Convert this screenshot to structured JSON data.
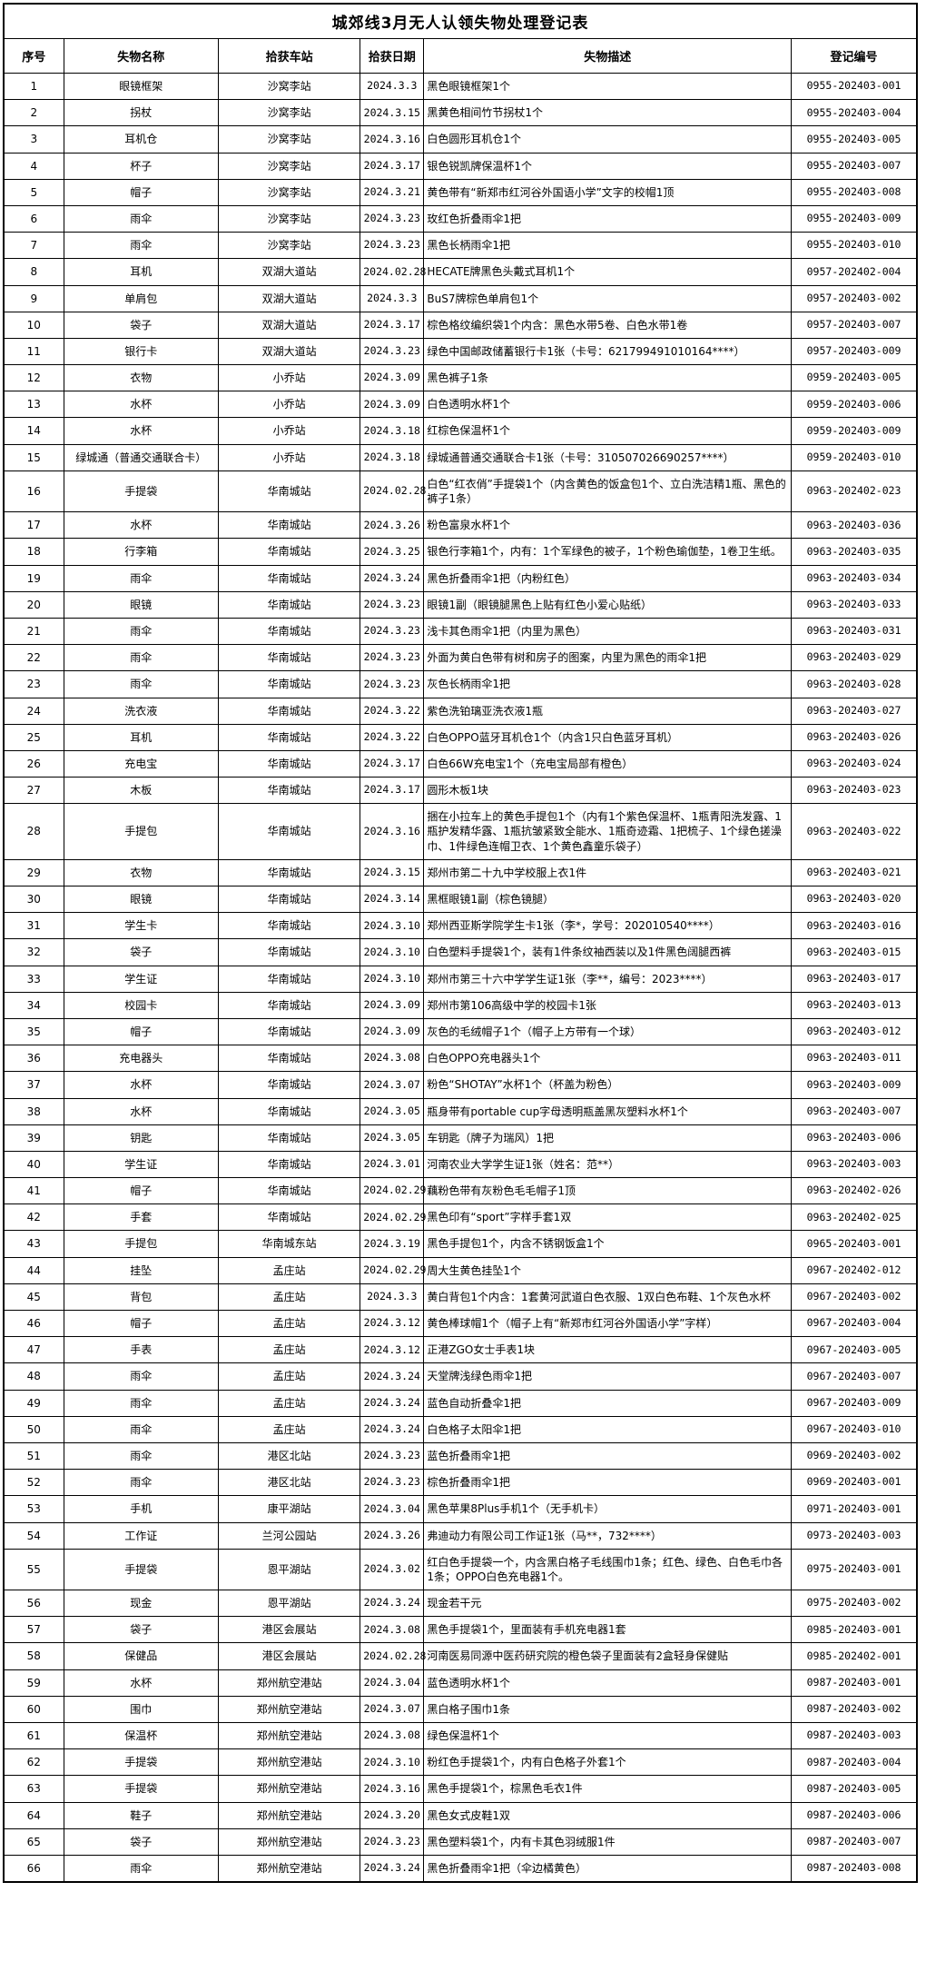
{
  "title": "城郊线3月无人认领失物处理登记表",
  "table": {
    "headers": [
      "序号",
      "失物名称",
      "拾获车站",
      "拾获日期",
      "失物描述",
      "登记编号"
    ],
    "column_keys": [
      "index",
      "item-name",
      "station",
      "date",
      "description",
      "registration-no"
    ],
    "rows": [
      [
        "1",
        "眼镜框架",
        "沙窝李站",
        "2024.3.3",
        "黑色眼镜框架1个",
        "0955-202403-001"
      ],
      [
        "2",
        "拐杖",
        "沙窝李站",
        "2024.3.15",
        "黑黄色相间竹节拐杖1个",
        "0955-202403-004"
      ],
      [
        "3",
        "耳机仓",
        "沙窝李站",
        "2024.3.16",
        "白色圆形耳机仓1个",
        "0955-202403-005"
      ],
      [
        "4",
        "杯子",
        "沙窝李站",
        "2024.3.17",
        "银色锐凯牌保温杯1个",
        "0955-202403-007"
      ],
      [
        "5",
        "帽子",
        "沙窝李站",
        "2024.3.21",
        "黄色带有“新郑市红河谷外国语小学”文字的校帽1顶",
        "0955-202403-008"
      ],
      [
        "6",
        "雨伞",
        "沙窝李站",
        "2024.3.23",
        "玫红色折叠雨伞1把",
        "0955-202403-009"
      ],
      [
        "7",
        "雨伞",
        "沙窝李站",
        "2024.3.23",
        "黑色长柄雨伞1把",
        "0955-202403-010"
      ],
      [
        "8",
        "耳机",
        "双湖大道站",
        "2024.02.28",
        "HECATE牌黑色头戴式耳机1个",
        "0957-202402-004"
      ],
      [
        "9",
        "单肩包",
        "双湖大道站",
        "2024.3.3",
        "BuS7牌棕色单肩包1个",
        "0957-202403-002"
      ],
      [
        "10",
        "袋子",
        "双湖大道站",
        "2024.3.17",
        "棕色格纹编织袋1个内含：黑色水带5卷、白色水带1卷",
        "0957-202403-007"
      ],
      [
        "11",
        "银行卡",
        "双湖大道站",
        "2024.3.23",
        "绿色中国邮政储蓄银行卡1张（卡号：621799491010164****）",
        "0957-202403-009"
      ],
      [
        "12",
        "衣物",
        "小乔站",
        "2024.3.09",
        "黑色裤子1条",
        "0959-202403-005"
      ],
      [
        "13",
        "水杯",
        "小乔站",
        "2024.3.09",
        "白色透明水杯1个",
        "0959-202403-006"
      ],
      [
        "14",
        "水杯",
        "小乔站",
        "2024.3.18",
        "红棕色保温杯1个",
        "0959-202403-009"
      ],
      [
        "15",
        "绿城通（普通交通联合卡）",
        "小乔站",
        "2024.3.18",
        "绿城通普通交通联合卡1张（卡号：310507026690257****）",
        "0959-202403-010"
      ],
      [
        "16",
        "手提袋",
        "华南城站",
        "2024.02.28",
        "白色“红衣俏”手提袋1个（内含黄色的饭盒包1个、立白洗洁精1瓶、黑色的裤子1条）",
        "0963-202402-023"
      ],
      [
        "17",
        "水杯",
        "华南城站",
        "2024.3.26",
        "粉色富泉水杯1个",
        "0963-202403-036"
      ],
      [
        "18",
        "行李箱",
        "华南城站",
        "2024.3.25",
        "银色行李箱1个，内有：1个军绿色的被子，1个粉色瑜伽垫，1卷卫生纸。",
        "0963-202403-035"
      ],
      [
        "19",
        "雨伞",
        "华南城站",
        "2024.3.24",
        "黑色折叠雨伞1把（内粉红色）",
        "0963-202403-034"
      ],
      [
        "20",
        "眼镜",
        "华南城站",
        "2024.3.23",
        "眼镜1副（眼镜腿黑色上贴有红色小爱心贴纸）",
        "0963-202403-033"
      ],
      [
        "21",
        "雨伞",
        "华南城站",
        "2024.3.23",
        "浅卡其色雨伞1把（内里为黑色）",
        "0963-202403-031"
      ],
      [
        "22",
        "雨伞",
        "华南城站",
        "2024.3.23",
        "外面为黄白色带有树和房子的图案，内里为黑色的雨伞1把",
        "0963-202403-029"
      ],
      [
        "23",
        "雨伞",
        "华南城站",
        "2024.3.23",
        "灰色长柄雨伞1把",
        "0963-202403-028"
      ],
      [
        "24",
        "洗衣液",
        "华南城站",
        "2024.3.22",
        "紫色洗铂璃亚洗衣液1瓶",
        "0963-202403-027"
      ],
      [
        "25",
        "耳机",
        "华南城站",
        "2024.3.22",
        "白色OPPO蓝牙耳机仓1个（内含1只白色蓝牙耳机）",
        "0963-202403-026"
      ],
      [
        "26",
        "充电宝",
        "华南城站",
        "2024.3.17",
        "白色66W充电宝1个（充电宝局部有橙色）",
        "0963-202403-024"
      ],
      [
        "27",
        "木板",
        "华南城站",
        "2024.3.17",
        "圆形木板1块",
        "0963-202403-023"
      ],
      [
        "28",
        "手提包",
        "华南城站",
        "2024.3.16",
        "捆在小拉车上的黄色手提包1个（内有1个紫色保温杯、1瓶青阳洗发露、1瓶护发精华露、1瓶抗皱紧致全能水、1瓶奇迹霜、1把梳子、1个绿色搓澡巾、1件绿色连帽卫衣、1个黄色鑫童乐袋子）",
        "0963-202403-022"
      ],
      [
        "29",
        "衣物",
        "华南城站",
        "2024.3.15",
        "郑州市第二十九中学校服上衣1件",
        "0963-202403-021"
      ],
      [
        "30",
        "眼镜",
        "华南城站",
        "2024.3.14",
        "黑框眼镜1副（棕色镜腿）",
        "0963-202403-020"
      ],
      [
        "31",
        "学生卡",
        "华南城站",
        "2024.3.10",
        "郑州西亚斯学院学生卡1张（李*，学号：202010540****）",
        "0963-202403-016"
      ],
      [
        "32",
        "袋子",
        "华南城站",
        "2024.3.10",
        "白色塑料手提袋1个，装有1件条纹袖西装以及1件黑色阔腿西裤",
        "0963-202403-015"
      ],
      [
        "33",
        "学生证",
        "华南城站",
        "2024.3.10",
        "郑州市第三十六中学学生证1张（李**，编号：2023****）",
        "0963-202403-017"
      ],
      [
        "34",
        "校园卡",
        "华南城站",
        "2024.3.09",
        "郑州市第106高级中学的校园卡1张",
        "0963-202403-013"
      ],
      [
        "35",
        "帽子",
        "华南城站",
        "2024.3.09",
        "灰色的毛绒帽子1个（帽子上方带有一个球）",
        "0963-202403-012"
      ],
      [
        "36",
        "充电器头",
        "华南城站",
        "2024.3.08",
        "白色OPPO充电器头1个",
        "0963-202403-011"
      ],
      [
        "37",
        "水杯",
        "华南城站",
        "2024.3.07",
        "粉色“SHOTAY”水杯1个（杯盖为粉色）",
        "0963-202403-009"
      ],
      [
        "38",
        "水杯",
        "华南城站",
        "2024.3.05",
        "瓶身带有portable cup字母透明瓶盖黑灰塑料水杯1个",
        "0963-202403-007"
      ],
      [
        "39",
        "钥匙",
        "华南城站",
        "2024.3.05",
        "车钥匙（牌子为瑞风）1把",
        "0963-202403-006"
      ],
      [
        "40",
        "学生证",
        "华南城站",
        "2024.3.01",
        "河南农业大学学生证1张（姓名：范**）",
        "0963-202403-003"
      ],
      [
        "41",
        "帽子",
        "华南城站",
        "2024.02.29",
        "藕粉色带有灰粉色毛毛帽子1顶",
        "0963-202402-026"
      ],
      [
        "42",
        "手套",
        "华南城站",
        "2024.02.29",
        "黑色印有“sport”字样手套1双",
        "0963-202402-025"
      ],
      [
        "43",
        "手提包",
        "华南城东站",
        "2024.3.19",
        "黑色手提包1个，内含不锈钢饭盒1个",
        "0965-202403-001"
      ],
      [
        "44",
        "挂坠",
        "孟庄站",
        "2024.02.29",
        "周大生黄色挂坠1个",
        "0967-202402-012"
      ],
      [
        "45",
        "背包",
        "孟庄站",
        "2024.3.3",
        "黄白背包1个内含：1套黄河武道白色衣服、1双白色布鞋、1个灰色水杯",
        "0967-202403-002"
      ],
      [
        "46",
        "帽子",
        "孟庄站",
        "2024.3.12",
        "黄色棒球帽1个（帽子上有“新郑市红河谷外国语小学”字样）",
        "0967-202403-004"
      ],
      [
        "47",
        "手表",
        "孟庄站",
        "2024.3.12",
        "正港ZGO女士手表1块",
        "0967-202403-005"
      ],
      [
        "48",
        "雨伞",
        "孟庄站",
        "2024.3.24",
        "天堂牌浅绿色雨伞1把",
        "0967-202403-007"
      ],
      [
        "49",
        "雨伞",
        "孟庄站",
        "2024.3.24",
        "蓝色自动折叠伞1把",
        "0967-202403-009"
      ],
      [
        "50",
        "雨伞",
        "孟庄站",
        "2024.3.24",
        "白色格子太阳伞1把",
        "0967-202403-010"
      ],
      [
        "51",
        "雨伞",
        "港区北站",
        "2024.3.23",
        "蓝色折叠雨伞1把",
        "0969-202403-002"
      ],
      [
        "52",
        "雨伞",
        "港区北站",
        "2024.3.23",
        "棕色折叠雨伞1把",
        "0969-202403-001"
      ],
      [
        "53",
        "手机",
        "康平湖站",
        "2024.3.04",
        "黑色苹果8Plus手机1个（无手机卡）",
        "0971-202403-001"
      ],
      [
        "54",
        "工作证",
        "兰河公园站",
        "2024.3.26",
        "弗迪动力有限公司工作证1张（马**，732****）",
        "0973-202403-003"
      ],
      [
        "55",
        "手提袋",
        "恩平湖站",
        "2024.3.02",
        "红白色手提袋一个，内含黑白格子毛线围巾1条；红色、绿色、白色毛巾各1条；OPPO白色充电器1个。",
        "0975-202403-001"
      ],
      [
        "56",
        "现金",
        "恩平湖站",
        "2024.3.24",
        "现金若干元",
        "0975-202403-002"
      ],
      [
        "57",
        "袋子",
        "港区会展站",
        "2024.3.08",
        "黑色手提袋1个，里面装有手机充电器1套",
        "0985-202403-001"
      ],
      [
        "58",
        "保健品",
        "港区会展站",
        "2024.02.28",
        "河南医易同源中医药研究院的橙色袋子里面装有2盒轻身保健贴",
        "0985-202402-001"
      ],
      [
        "59",
        "水杯",
        "郑州航空港站",
        "2024.3.04",
        "蓝色透明水杯1个",
        "0987-202403-001"
      ],
      [
        "60",
        "围巾",
        "郑州航空港站",
        "2024.3.07",
        "黑白格子围巾1条",
        "0987-202403-002"
      ],
      [
        "61",
        "保温杯",
        "郑州航空港站",
        "2024.3.08",
        "绿色保温杯1个",
        "0987-202403-003"
      ],
      [
        "62",
        "手提袋",
        "郑州航空港站",
        "2024.3.10",
        "粉红色手提袋1个，内有白色格子外套1个",
        "0987-202403-004"
      ],
      [
        "63",
        "手提袋",
        "郑州航空港站",
        "2024.3.16",
        "黑色手提袋1个，棕黑色毛衣1件",
        "0987-202403-005"
      ],
      [
        "64",
        "鞋子",
        "郑州航空港站",
        "2024.3.20",
        "黑色女式皮鞋1双",
        "0987-202403-006"
      ],
      [
        "65",
        "袋子",
        "郑州航空港站",
        "2024.3.23",
        "黑色塑料袋1个，内有卡其色羽绒服1件",
        "0987-202403-007"
      ],
      [
        "66",
        "雨伞",
        "郑州航空港站",
        "2024.3.24",
        "黑色折叠雨伞1把（伞边橘黄色）",
        "0987-202403-008"
      ]
    ]
  }
}
